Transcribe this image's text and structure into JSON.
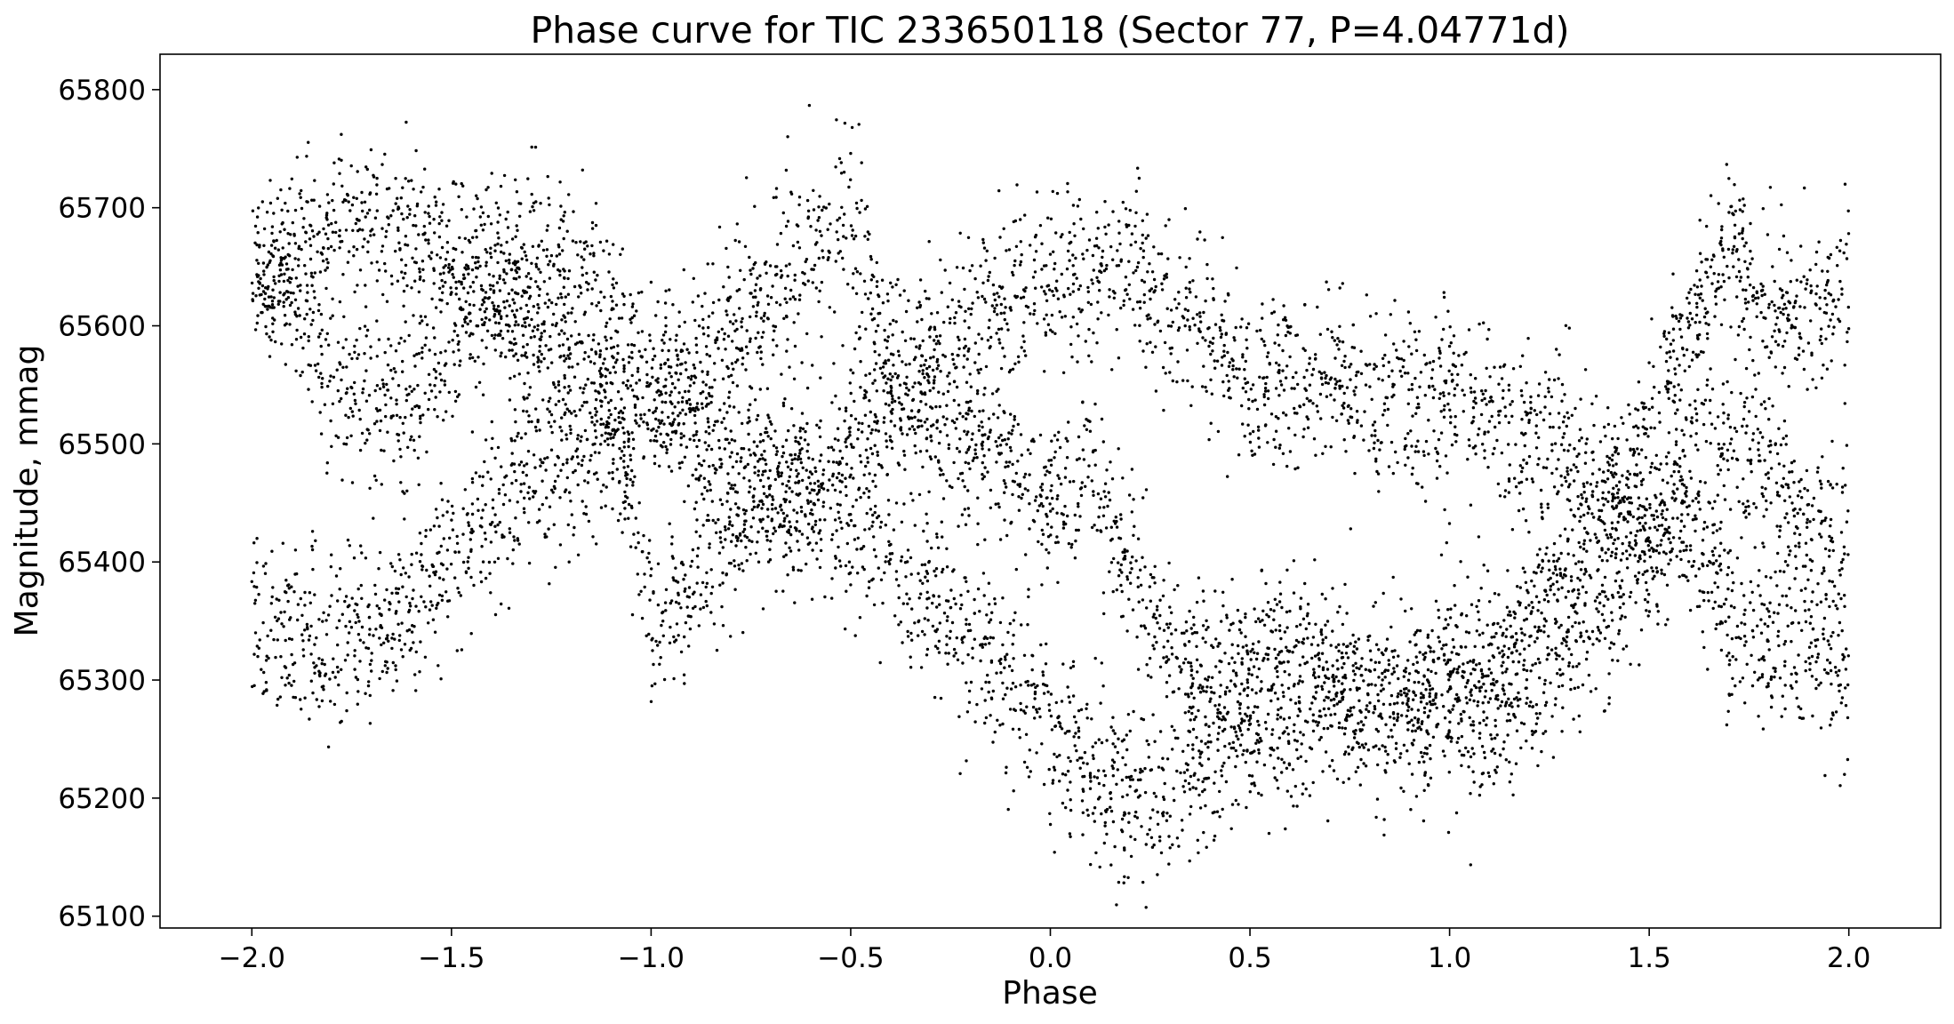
{
  "chart_data": {
    "type": "scatter",
    "title": "Phase curve for TIC 233650118 (Sector 77, P=4.04771d)",
    "xlabel": "Phase",
    "ylabel": "Magnitude, mmag",
    "xlim": [
      -2.23,
      2.23
    ],
    "ylim": [
      65090,
      65830
    ],
    "xticks": [
      -2.0,
      -1.5,
      -1.0,
      -0.5,
      0.0,
      0.5,
      1.0,
      1.5,
      2.0
    ],
    "xtick_labels": [
      "−2.0",
      "−1.5",
      "−1.0",
      "−0.5",
      "0.0",
      "0.5",
      "1.0",
      "1.5",
      "2.0"
    ],
    "yticks": [
      65100,
      65200,
      65300,
      65400,
      65500,
      65600,
      65700,
      65800
    ],
    "ytick_labels": [
      "65100",
      "65200",
      "65300",
      "65400",
      "65500",
      "65600",
      "65700",
      "65800"
    ],
    "grid": false,
    "marker_color": "#000000",
    "series": [
      {
        "branch": "A",
        "x": [
          -2.0,
          -1.9,
          -1.8,
          -1.7,
          -1.6,
          -1.5,
          -1.4,
          -1.3,
          -1.2,
          -1.1,
          -1.0,
          -0.9,
          -0.8,
          -0.7,
          -0.6,
          -0.5,
          -0.4,
          -0.3,
          -0.2,
          -0.1,
          0.0,
          0.1,
          0.2,
          0.3,
          0.4,
          0.5,
          0.6,
          0.7,
          0.8,
          0.9,
          1.0,
          1.1,
          1.2,
          1.3,
          1.4,
          1.5,
          1.6,
          1.7,
          1.8,
          1.9,
          2.0
        ],
        "y": [
          65645,
          65620,
          65560,
          65530,
          65545,
          65580,
          65640,
          65650,
          65640,
          65615,
          65550,
          65520,
          65495,
          65470,
          65450,
          65430,
          65400,
          65365,
          65330,
          65300,
          65260,
          65230,
          65210,
          65205,
          65230,
          65255,
          65270,
          65280,
          65280,
          65275,
          65270,
          65265,
          65290,
          65330,
          65380,
          65420,
          65440,
          65350,
          65340,
          65320,
          65310
        ],
        "spread": 38
      },
      {
        "branch": "B",
        "x": [
          -2.0,
          -1.9,
          -1.8,
          -1.7,
          -1.6,
          -1.5,
          -1.4,
          -1.3,
          -1.2,
          -1.1,
          -1.0,
          -0.9,
          -0.8,
          -0.7,
          -0.6,
          -0.5,
          -0.4,
          -0.3,
          -0.2,
          -0.1,
          0.0,
          0.1,
          0.2,
          0.3,
          0.4,
          0.5,
          0.6,
          0.7,
          0.8,
          0.9,
          1.0,
          1.1,
          1.2,
          1.3,
          1.4,
          1.5,
          1.6,
          1.7,
          1.8,
          1.9,
          2.0
        ],
        "y": [
          65350,
          65335,
          65330,
          65345,
          65360,
          65400,
          65450,
          65475,
          65480,
          65505,
          65530,
          65555,
          65595,
          65630,
          65660,
          65700,
          65570,
          65560,
          65590,
          65620,
          65635,
          65650,
          65650,
          65620,
          65590,
          65560,
          65550,
          65545,
          65545,
          65540,
          65535,
          65525,
          65510,
          65490,
          65460,
          65420,
          65480,
          65500,
          65480,
          65430,
          65420
        ],
        "spread": 38
      },
      {
        "branch": "C",
        "x": [
          -2.0,
          -1.9,
          -1.8,
          -1.7,
          -1.6,
          -1.5,
          -1.4,
          -1.3,
          -1.2,
          -1.1,
          -1.0,
          -0.9,
          -0.8,
          -0.7,
          -0.6,
          -0.5,
          -0.4,
          -0.3,
          -0.2,
          -0.1,
          0.0,
          0.1,
          0.2,
          0.3,
          0.4,
          0.5,
          0.6,
          0.7,
          0.8,
          0.9,
          1.0,
          1.1,
          1.2,
          1.3,
          1.4,
          1.5,
          1.6,
          1.7,
          1.8,
          1.9,
          2.0
        ],
        "y": [
          65630,
          65660,
          65680,
          65690,
          65680,
          65660,
          65640,
          65600,
          65560,
          65540,
          65350,
          65380,
          65420,
          65450,
          65470,
          65510,
          65540,
          65520,
          65500,
          65480,
          65450,
          65470,
          65400,
          65330,
          65300,
          65310,
          65330,
          65300,
          65290,
          65300,
          65310,
          65330,
          65360,
          65400,
          65450,
          65520,
          65600,
          65660,
          65620,
          65600,
          65630
        ],
        "spread": 34
      }
    ]
  }
}
